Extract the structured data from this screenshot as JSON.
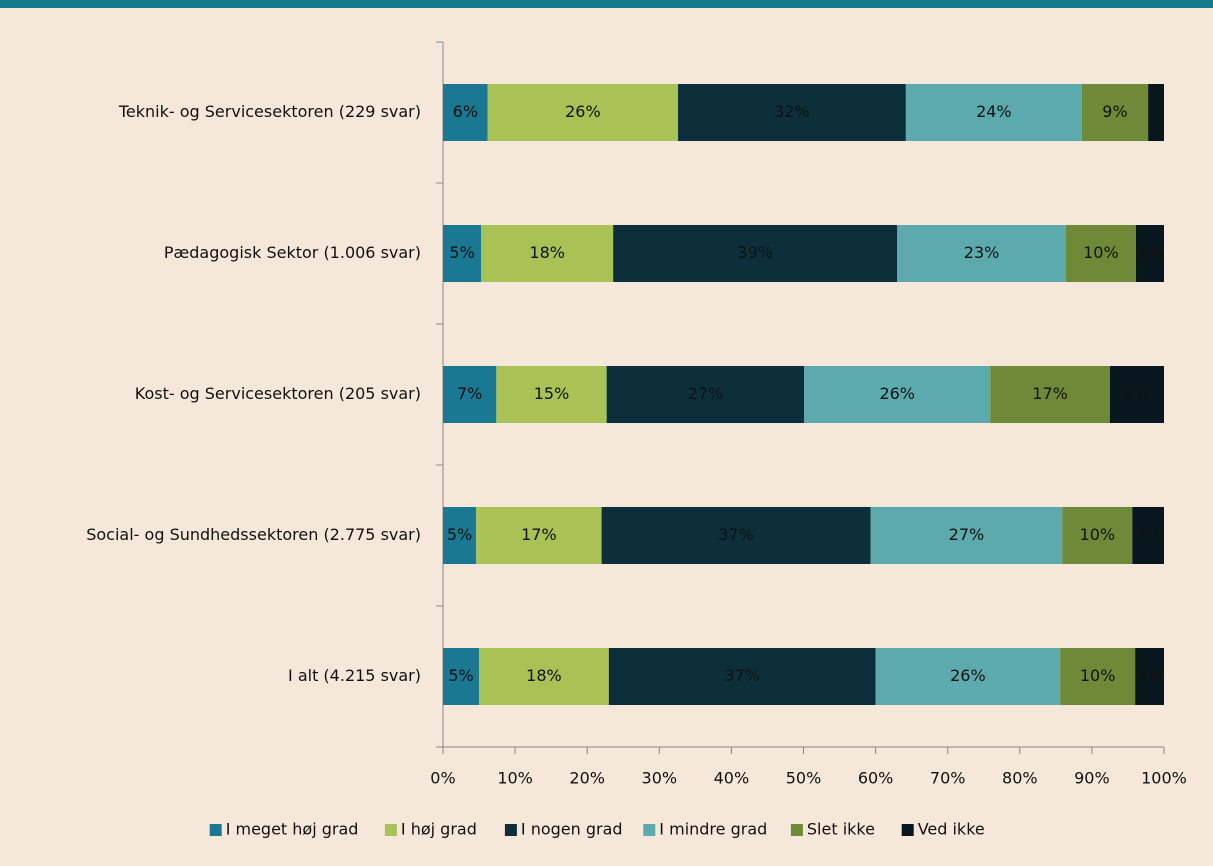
{
  "chart_data": {
    "type": "stacked_barh",
    "categories": [
      "Teknik- og Servicesektoren (229 svar)",
      "Pædagogisk Sektor (1.006 svar)",
      "Kost- og Servicesektoren (205 svar)",
      "Social- og Sundhedssektoren (2.775 svar)",
      "I alt (4.215 svar)"
    ],
    "series": [
      {
        "name": "I meget høj grad",
        "color": "#1b7893",
        "values": [
          6.2,
          5.3,
          7.4,
          4.6,
          5.0
        ],
        "value_labels": [
          "6%",
          "5%",
          "7%",
          "5%",
          "5%"
        ]
      },
      {
        "name": "I høj grad",
        "color": "#a8c256",
        "values": [
          26.4,
          18.3,
          15.3,
          17.4,
          18.0
        ],
        "value_labels": [
          "26%",
          "18%",
          "15%",
          "17%",
          "18%"
        ]
      },
      {
        "name": "I nogen grad",
        "color": "#0d2f3b",
        "values": [
          31.6,
          39.4,
          27.4,
          37.3,
          37.0
        ],
        "value_labels": [
          "32%",
          "39%",
          "27%",
          "37%",
          "37%"
        ]
      },
      {
        "name": "I mindre grad",
        "color": "#5caaae",
        "values": [
          24.4,
          23.4,
          25.8,
          26.6,
          25.6
        ],
        "value_labels": [
          "24%",
          "23%",
          "26%",
          "27%",
          "26%"
        ]
      },
      {
        "name": "Slet ikke",
        "color": "#6e8a38",
        "values": [
          9.2,
          9.7,
          16.6,
          9.7,
          10.4
        ],
        "value_labels": [
          "9%",
          "10%",
          "17%",
          "10%",
          "10%"
        ]
      },
      {
        "name": "Ved ikke",
        "color": "#08161d",
        "values": [
          2.2,
          3.9,
          7.5,
          4.4,
          4.0
        ],
        "value_labels": [
          null,
          "4%",
          "8%",
          "4%",
          "4%"
        ]
      }
    ],
    "xlim": [
      0,
      100
    ],
    "xticks": [
      {
        "value": 0,
        "label": "0%"
      },
      {
        "value": 10,
        "label": "10%"
      },
      {
        "value": 20,
        "label": "20%"
      },
      {
        "value": 30,
        "label": "30%"
      },
      {
        "value": 40,
        "label": "40%"
      },
      {
        "value": 50,
        "label": "50%"
      },
      {
        "value": 60,
        "label": "60%"
      },
      {
        "value": 70,
        "label": "70%"
      },
      {
        "value": 80,
        "label": "80%"
      },
      {
        "value": 90,
        "label": "90%"
      },
      {
        "value": 100,
        "label": "100%"
      }
    ],
    "legend": "bottom"
  }
}
